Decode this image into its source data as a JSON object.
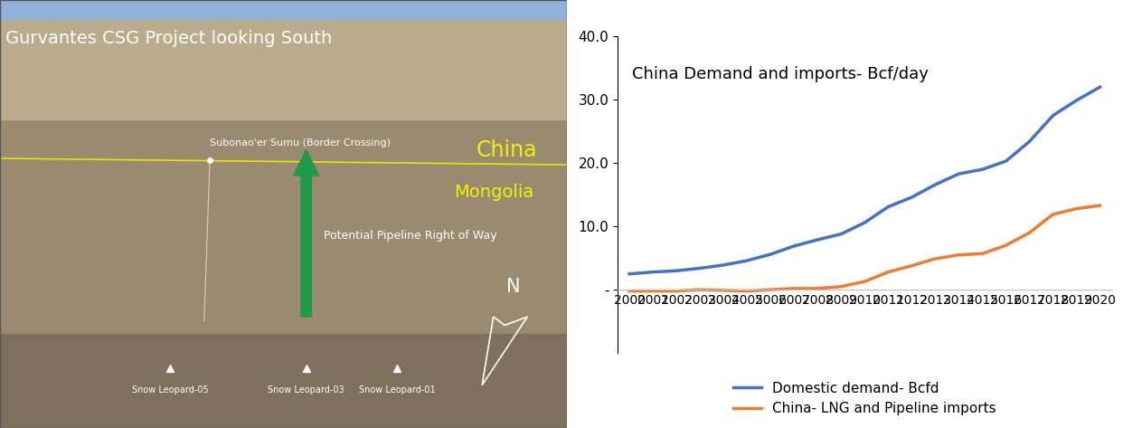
{
  "map": {
    "title": "Gurvantes CSG Project looking South",
    "border_crossing": "Subonao'er Sumu (Border Crossing)",
    "countries": [
      "China",
      "Mongolia"
    ],
    "pipeline": "Potential Pipeline Right of Way",
    "compass": "N",
    "wells": [
      "Snow Leopard-05",
      "Snow Leopard-03",
      "Snow Leopard-01"
    ]
  },
  "chart_data": {
    "type": "line",
    "title": "China Demand and imports- Bcf/day",
    "categories": [
      "2000",
      "2001",
      "2002",
      "2003",
      "2004",
      "2005",
      "2006",
      "2007",
      "2008",
      "2009",
      "2010",
      "2011",
      "2012",
      "2013",
      "2014",
      "2015",
      "2016",
      "2017",
      "2018",
      "2019",
      "2020"
    ],
    "series": [
      {
        "name": "Domestic demand- Bcfd",
        "color": "#4472c4",
        "values": [
          2.5,
          2.8,
          3.0,
          3.4,
          3.9,
          4.6,
          5.6,
          6.9,
          7.9,
          8.8,
          10.6,
          13.1,
          14.6,
          16.6,
          18.3,
          19.0,
          20.3,
          23.4,
          27.5,
          29.9,
          32.0
        ]
      },
      {
        "name": "China- LNG and Pipeline imports",
        "color": "#ed7d31",
        "values": [
          -0.2,
          -0.2,
          -0.2,
          0.0,
          -0.1,
          -0.2,
          0.0,
          0.2,
          0.2,
          0.5,
          1.3,
          2.8,
          3.8,
          4.9,
          5.5,
          5.7,
          7.0,
          9.0,
          11.9,
          12.8,
          13.3
        ]
      }
    ],
    "ylim": [
      -10,
      40
    ],
    "yticks": [
      {
        "value": 0,
        "label": "-"
      },
      {
        "value": 10,
        "label": "10.0"
      },
      {
        "value": 20,
        "label": "20.0"
      },
      {
        "value": 30,
        "label": "30.0"
      },
      {
        "value": 40,
        "label": "40.0"
      }
    ],
    "grid": false,
    "legend": "lower center"
  }
}
